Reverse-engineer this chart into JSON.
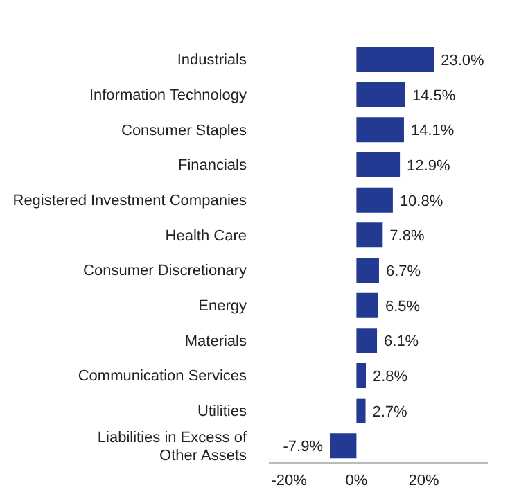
{
  "chart_data": {
    "type": "bar",
    "orientation": "horizontal",
    "categories": [
      "Industrials",
      "Information Technology",
      "Consumer Staples",
      "Financials",
      "Registered Investment Companies",
      "Health Care",
      "Consumer Discretionary",
      "Energy",
      "Materials",
      "Communication Services",
      "Utilities",
      "Liabilities in Excess of Other Assets"
    ],
    "values": [
      23.0,
      14.5,
      14.1,
      12.9,
      10.8,
      7.8,
      6.7,
      6.5,
      6.1,
      2.8,
      2.7,
      -7.9
    ],
    "value_labels": [
      "23.0%",
      "14.5%",
      "14.1%",
      "12.9%",
      "10.8%",
      "7.8%",
      "6.7%",
      "6.5%",
      "6.1%",
      "2.8%",
      "2.7%",
      "-7.9%"
    ],
    "color": "#233a93",
    "xlim": [
      -26,
      39
    ],
    "xticks": [
      {
        "value": -20,
        "label": "-20%"
      },
      {
        "value": 0,
        "label": "0%"
      },
      {
        "value": 20,
        "label": "20%"
      }
    ],
    "grid": false,
    "legend": false
  }
}
